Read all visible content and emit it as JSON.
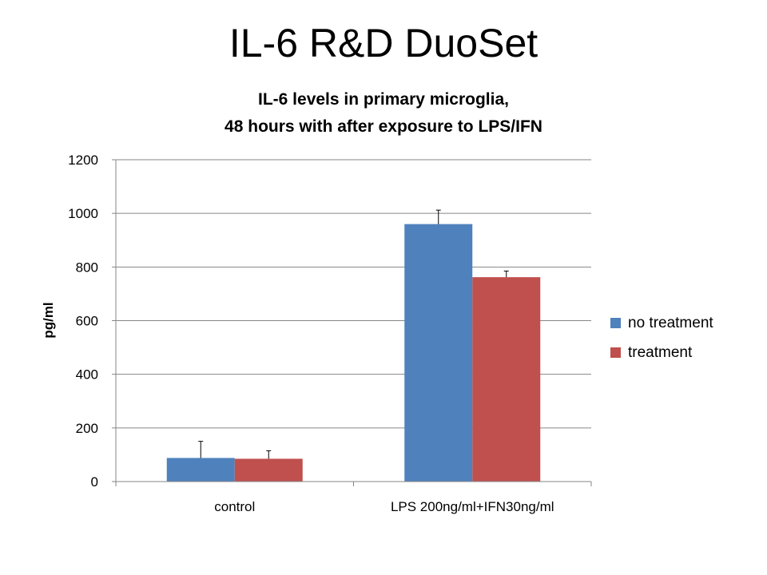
{
  "slide": {
    "title": "IL-6 R&D DuoSet"
  },
  "chart_data": {
    "type": "bar",
    "title_lines": [
      "IL-6 levels in primary microglia,",
      "48 hours with after exposure to LPS/IFN"
    ],
    "xlabel": "",
    "ylabel": "pg/ml",
    "ylim": [
      0,
      1200
    ],
    "yticks": [
      "0",
      "200",
      "400",
      "600",
      "800",
      "1000",
      "1200"
    ],
    "categories": [
      "control",
      "LPS 200ng/ml+IFN30ng/ml"
    ],
    "series": [
      {
        "name": "no treatment",
        "color": "#4F81BD",
        "values": [
          88,
          960
        ],
        "errors": [
          62,
          52
        ]
      },
      {
        "name": "treatment",
        "color": "#C0504D",
        "values": [
          85,
          762
        ],
        "errors": [
          30,
          23
        ]
      }
    ],
    "grid": true,
    "legend_position": "right"
  }
}
